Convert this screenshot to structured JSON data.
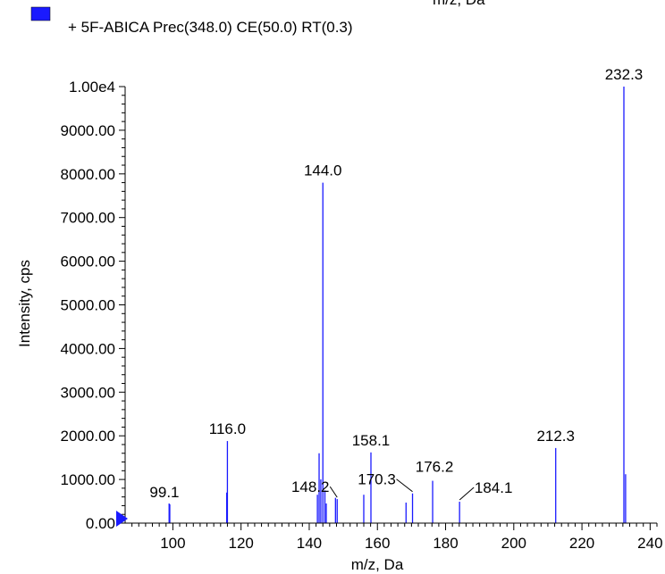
{
  "top_partial_label": "m/z, Da",
  "chart_data": {
    "type": "bar",
    "xlabel": "m/z, Da",
    "ylabel": "Intensity, cps",
    "xlim": [
      86,
      242
    ],
    "ylim": [
      0,
      10000
    ],
    "legend": {
      "placement": "top-left",
      "label": "+ 5F-ABICA Prec(348.0) CE(50.0) RT(0.3)",
      "color": "#1a1aff"
    },
    "series_color": "#1a1aff",
    "x_ticks": [
      {
        "value": 100,
        "label": "100"
      },
      {
        "value": 120,
        "label": "120"
      },
      {
        "value": 140,
        "label": "140"
      },
      {
        "value": 160,
        "label": "160"
      },
      {
        "value": 180,
        "label": "180"
      },
      {
        "value": 200,
        "label": "200"
      },
      {
        "value": 220,
        "label": "220"
      },
      {
        "value": 240,
        "label": "240"
      }
    ],
    "y_ticks": [
      {
        "value": 0,
        "label": "0.00"
      },
      {
        "value": 1000,
        "label": "1000.00"
      },
      {
        "value": 2000,
        "label": "2000.00"
      },
      {
        "value": 3000,
        "label": "3000.00"
      },
      {
        "value": 4000,
        "label": "4000.00"
      },
      {
        "value": 5000,
        "label": "5000.00"
      },
      {
        "value": 6000,
        "label": "6000.00"
      },
      {
        "value": 7000,
        "label": "7000.00"
      },
      {
        "value": 8000,
        "label": "8000.00"
      },
      {
        "value": 9000,
        "label": "9000.00"
      },
      {
        "value": 10000,
        "label": "1.00e4"
      }
    ],
    "peaks": [
      {
        "x": 98.9,
        "y": 450
      },
      {
        "x": 99.1,
        "y": 430
      },
      {
        "x": 115.8,
        "y": 700
      },
      {
        "x": 116.0,
        "y": 1880
      },
      {
        "x": 142.4,
        "y": 650
      },
      {
        "x": 142.9,
        "y": 1600
      },
      {
        "x": 143.4,
        "y": 1000
      },
      {
        "x": 144.0,
        "y": 7800
      },
      {
        "x": 144.6,
        "y": 750
      },
      {
        "x": 145.0,
        "y": 450
      },
      {
        "x": 147.7,
        "y": 580
      },
      {
        "x": 148.2,
        "y": 550
      },
      {
        "x": 156.0,
        "y": 650
      },
      {
        "x": 158.1,
        "y": 1620
      },
      {
        "x": 168.4,
        "y": 470
      },
      {
        "x": 170.3,
        "y": 680
      },
      {
        "x": 176.2,
        "y": 970
      },
      {
        "x": 184.1,
        "y": 490
      },
      {
        "x": 212.3,
        "y": 1720
      },
      {
        "x": 232.3,
        "y": 10000
      },
      {
        "x": 232.8,
        "y": 1120
      }
    ],
    "annotations": [
      {
        "label": "99.1",
        "x": 99.1,
        "y": 430
      },
      {
        "label": "116.0",
        "x": 116.0,
        "y": 1880
      },
      {
        "label": "144.0",
        "x": 144.0,
        "y": 7800
      },
      {
        "label": "148.2",
        "x": 148.2,
        "y": 550
      },
      {
        "label": "158.1",
        "x": 158.1,
        "y": 1620
      },
      {
        "label": "170.3",
        "x": 170.3,
        "y": 680
      },
      {
        "label": "176.2",
        "x": 176.2,
        "y": 970
      },
      {
        "label": "184.1",
        "x": 184.1,
        "y": 490
      },
      {
        "label": "212.3",
        "x": 212.3,
        "y": 1720
      },
      {
        "label": "232.3",
        "x": 232.3,
        "y": 10000
      }
    ]
  }
}
